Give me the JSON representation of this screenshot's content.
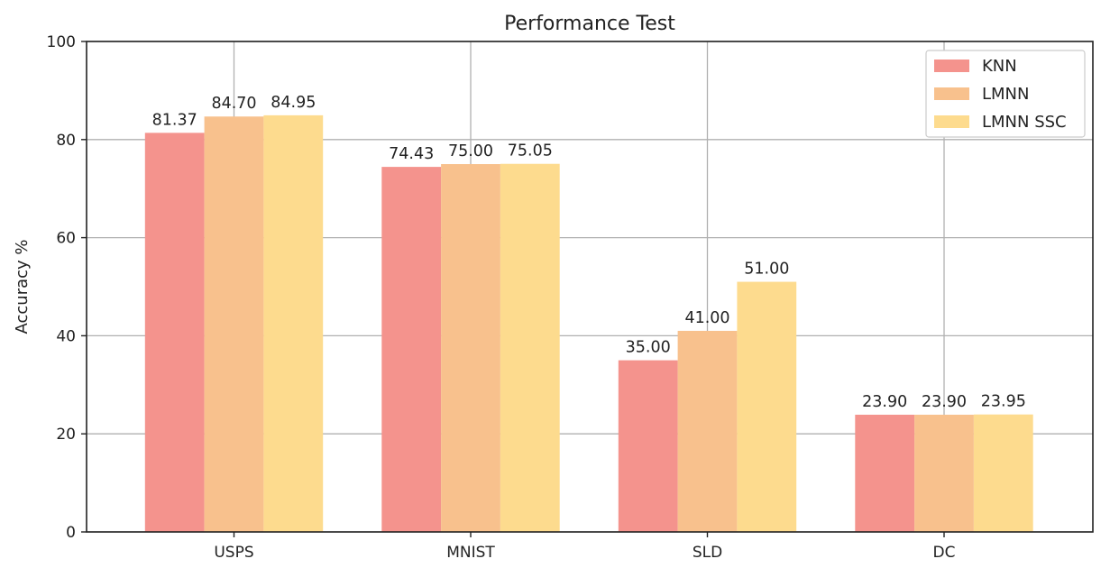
{
  "chart_data": {
    "type": "bar",
    "title": "Performance Test",
    "xlabel": "",
    "ylabel": "Accuracy %",
    "categories": [
      "USPS",
      "MNIST",
      "SLD",
      "DC"
    ],
    "series": [
      {
        "name": "KNN",
        "color": "#f4938d",
        "values": [
          81.37,
          74.43,
          35.0,
          23.9
        ],
        "labels": [
          "81.37",
          "74.43",
          "35.00",
          "23.90"
        ]
      },
      {
        "name": "LMNN",
        "color": "#f8c18d",
        "values": [
          84.7,
          75.0,
          41.0,
          23.9
        ],
        "labels": [
          "84.70",
          "75.00",
          "41.00",
          "23.90"
        ]
      },
      {
        "name": "LMNN SSC",
        "color": "#fddb8e",
        "values": [
          84.95,
          75.05,
          51.0,
          23.95
        ],
        "labels": [
          "84.95",
          "75.05",
          "51.00",
          "23.95"
        ]
      }
    ],
    "ylim": [
      0,
      100
    ],
    "yticks": [
      0,
      20,
      40,
      60,
      80,
      100
    ],
    "ytick_labels": [
      "0",
      "20",
      "40",
      "60",
      "80",
      "100"
    ],
    "grid": true,
    "legend_position": "top-right"
  }
}
